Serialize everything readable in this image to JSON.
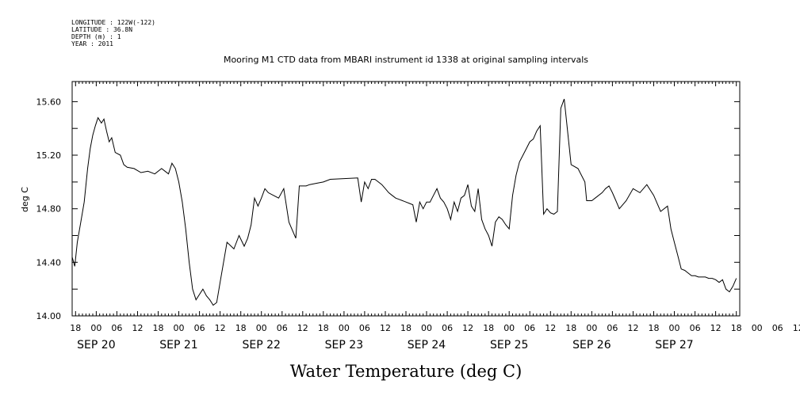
{
  "header": {
    "lines": [
      "LONGITUDE : 122W(-122)",
      "LATITUDE : 36.8N",
      "DEPTH (m) : 1",
      "YEAR : 2011"
    ],
    "title": "Mooring M1 CTD data from MBARI instrument id 1338 at original sampling intervals"
  },
  "chart_data": {
    "type": "line",
    "title": "Mooring M1 CTD data from MBARI instrument id 1338 at original sampling intervals",
    "xlabel": "Water Temperature (deg C)",
    "ylabel": "deg C",
    "ylim": [
      14.0,
      15.75
    ],
    "y_ticks": [
      "14.00",
      "14.40",
      "14.80",
      "15.20",
      "15.60"
    ],
    "xlim": [
      "2011-09-19 17:00",
      "2011-09-27 19:00"
    ],
    "x_hour_labels": [
      "18",
      "00",
      "06",
      "12",
      "18",
      "00",
      "06",
      "12",
      "18",
      "00",
      "06",
      "12",
      "18",
      "00",
      "06",
      "12",
      "18",
      "00",
      "06",
      "12",
      "18",
      "00",
      "06",
      "12",
      "18",
      "00",
      "06",
      "12",
      "18",
      "00",
      "06",
      "12",
      "18",
      "00",
      "06",
      "12"
    ],
    "x_day_labels": [
      "SEP 20",
      "SEP 21",
      "SEP 22",
      "SEP 23",
      "SEP 24",
      "SEP 25",
      "SEP 26",
      "SEP 27"
    ],
    "grid": false,
    "legend": "none",
    "line_color": "#000000",
    "series": [
      {
        "x": [
          "2011-09-19 17:00",
          "2011-09-19 17:45",
          "2011-09-19 18:30",
          "2011-09-19 19:30",
          "2011-09-19 20:30",
          "2011-09-19 21:30",
          "2011-09-19 22:15",
          "2011-09-19 23:00",
          "2011-09-19 23:45",
          "2011-09-20 00:30",
          "2011-09-20 01:30",
          "2011-09-20 02:15",
          "2011-09-20 03:00",
          "2011-09-20 03:45",
          "2011-09-20 04:30",
          "2011-09-20 05:30",
          "2011-09-20 07:00",
          "2011-09-20 08:00",
          "2011-09-20 09:00",
          "2011-09-20 11:00",
          "2011-09-20 13:00",
          "2011-09-20 15:00",
          "2011-09-20 17:00",
          "2011-09-20 19:00",
          "2011-09-20 20:00",
          "2011-09-20 21:00",
          "2011-09-20 22:00",
          "2011-09-20 23:00",
          "2011-09-21 00:00",
          "2011-09-21 01:00",
          "2011-09-21 02:00",
          "2011-09-21 03:00",
          "2011-09-21 04:00",
          "2011-09-21 05:00",
          "2011-09-21 06:00",
          "2011-09-21 07:00",
          "2011-09-21 08:00",
          "2011-09-21 09:00",
          "2011-09-21 10:00",
          "2011-09-21 11:00",
          "2011-09-21 12:00",
          "2011-09-21 14:00",
          "2011-09-21 16:00",
          "2011-09-21 17:30",
          "2011-09-21 19:00",
          "2011-09-21 20:00",
          "2011-09-21 21:00",
          "2011-09-21 22:00",
          "2011-09-21 23:00",
          "2011-09-22 00:00",
          "2011-09-22 01:00",
          "2011-09-22 02:00",
          "2011-09-22 03:30",
          "2011-09-22 05:00",
          "2011-09-22 06:30",
          "2011-09-22 08:00",
          "2011-09-22 10:00",
          "2011-09-22 11:00",
          "2011-09-22 12:00",
          "2011-09-22 13:00",
          "2011-09-22 14:00",
          "2011-09-22 16:00",
          "2011-09-22 18:00",
          "2011-09-22 20:00",
          "2011-09-23 04:00",
          "2011-09-23 05:00",
          "2011-09-23 06:00",
          "2011-09-23 07:00",
          "2011-09-23 08:00",
          "2011-09-23 09:00",
          "2011-09-23 10:00",
          "2011-09-23 11:00",
          "2011-09-23 12:00",
          "2011-09-23 13:00",
          "2011-09-23 14:00",
          "2011-09-23 15:00",
          "2011-09-23 16:00",
          "2011-09-23 17:00",
          "2011-09-23 18:00",
          "2011-09-23 19:00",
          "2011-09-23 20:00",
          "2011-09-23 21:00",
          "2011-09-23 22:00",
          "2011-09-23 23:00",
          "2011-09-24 00:00",
          "2011-09-24 01:00",
          "2011-09-24 02:00",
          "2011-09-24 03:00",
          "2011-09-24 04:00",
          "2011-09-24 05:00",
          "2011-09-24 06:00",
          "2011-09-24 07:00",
          "2011-09-24 08:00",
          "2011-09-24 09:00",
          "2011-09-24 10:00",
          "2011-09-24 11:00",
          "2011-09-24 12:00",
          "2011-09-24 13:00",
          "2011-09-24 14:00",
          "2011-09-24 15:00",
          "2011-09-24 16:00",
          "2011-09-24 17:00",
          "2011-09-24 18:00",
          "2011-09-24 19:00",
          "2011-09-24 20:00",
          "2011-09-24 21:00",
          "2011-09-24 22:00",
          "2011-09-24 23:00",
          "2011-09-25 00:00",
          "2011-09-25 01:00",
          "2011-09-25 02:00",
          "2011-09-25 03:00",
          "2011-09-25 04:00",
          "2011-09-25 05:00",
          "2011-09-25 06:00",
          "2011-09-25 07:00",
          "2011-09-25 08:00",
          "2011-09-25 09:00",
          "2011-09-25 10:00",
          "2011-09-25 11:00",
          "2011-09-25 12:00",
          "2011-09-25 13:00",
          "2011-09-25 14:00",
          "2011-09-25 15:00",
          "2011-09-25 16:00",
          "2011-09-25 18:00",
          "2011-09-25 20:00",
          "2011-09-25 22:00",
          "2011-09-25 22:30",
          "2011-09-26 00:00",
          "2011-09-26 01:00",
          "2011-09-26 03:00",
          "2011-09-26 04:00",
          "2011-09-26 05:00",
          "2011-09-26 06:00",
          "2011-09-26 07:00",
          "2011-09-26 08:00",
          "2011-09-26 10:00",
          "2011-09-26 12:00",
          "2011-09-26 14:00",
          "2011-09-26 16:00",
          "2011-09-26 18:00",
          "2011-09-26 20:00",
          "2011-09-26 22:00",
          "2011-09-26 23:00",
          "2011-09-27 00:00",
          "2011-09-27 01:00",
          "2011-09-27 02:00",
          "2011-09-27 03:00",
          "2011-09-27 04:00",
          "2011-09-27 05:00",
          "2011-09-27 06:00",
          "2011-09-27 07:00",
          "2011-09-27 08:00",
          "2011-09-27 09:00",
          "2011-09-27 10:00",
          "2011-09-27 11:00",
          "2011-09-27 12:00",
          "2011-09-27 13:00",
          "2011-09-27 14:00",
          "2011-09-27 15:00",
          "2011-09-27 16:00",
          "2011-09-27 17:00",
          "2011-09-27 18:00"
        ],
        "y": [
          14.44,
          14.37,
          14.55,
          14.7,
          14.85,
          15.1,
          15.25,
          15.35,
          15.42,
          15.48,
          15.44,
          15.47,
          15.38,
          15.3,
          15.33,
          15.22,
          15.2,
          15.13,
          15.11,
          15.1,
          15.07,
          15.08,
          15.06,
          15.1,
          15.08,
          15.06,
          15.14,
          15.1,
          15.0,
          14.85,
          14.65,
          14.4,
          14.2,
          14.12,
          14.16,
          14.2,
          14.15,
          14.12,
          14.08,
          14.1,
          14.25,
          14.55,
          14.5,
          14.6,
          14.52,
          14.58,
          14.68,
          14.88,
          14.82,
          14.88,
          14.95,
          14.92,
          14.9,
          14.88,
          14.95,
          14.7,
          14.58,
          14.97,
          14.97,
          14.97,
          14.98,
          14.99,
          15.0,
          15.02,
          15.03,
          14.85,
          15.0,
          14.95,
          15.02,
          15.02,
          15.0,
          14.98,
          14.95,
          14.92,
          14.9,
          14.88,
          14.87,
          14.86,
          14.85,
          14.84,
          14.83,
          14.7,
          14.85,
          14.8,
          14.85,
          14.85,
          14.9,
          14.95,
          14.88,
          14.85,
          14.8,
          14.72,
          14.85,
          14.78,
          14.88,
          14.9,
          14.98,
          14.82,
          14.78,
          14.95,
          14.72,
          14.65,
          14.6,
          14.52,
          14.7,
          14.74,
          14.72,
          14.68,
          14.65,
          14.9,
          15.05,
          15.15,
          15.2,
          15.25,
          15.3,
          15.32,
          15.38,
          15.42,
          14.76,
          14.8,
          14.77,
          14.76,
          14.78,
          15.55,
          15.62,
          15.13,
          15.1,
          15.0,
          14.86,
          14.86,
          14.88,
          14.92,
          14.95,
          14.97,
          14.92,
          14.86,
          14.8,
          14.86,
          14.95,
          14.92,
          14.98,
          14.9,
          14.78,
          14.82,
          14.65,
          14.55,
          14.45,
          14.35,
          14.34,
          14.32,
          14.3,
          14.3,
          14.29,
          14.29,
          14.29,
          14.28,
          14.28,
          14.27,
          14.25,
          14.27,
          14.2,
          14.18,
          14.22,
          14.28
        ]
      }
    ]
  }
}
